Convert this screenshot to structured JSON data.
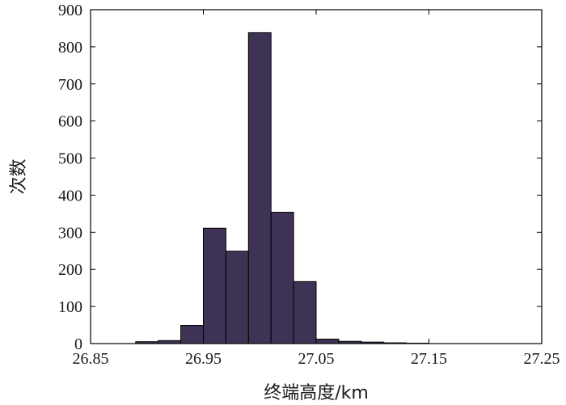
{
  "chart_data": {
    "type": "bar",
    "subtype": "histogram",
    "title": "",
    "xlabel": "终端高度/km",
    "ylabel": "次数",
    "xlim": [
      26.85,
      27.25
    ],
    "ylim": [
      0,
      900
    ],
    "x_ticks": [
      "26.85",
      "26.95",
      "27.05",
      "27.15",
      "27.25"
    ],
    "y_ticks": [
      "0",
      "100",
      "200",
      "300",
      "400",
      "500",
      "600",
      "700",
      "800",
      "900"
    ],
    "bin_width": 0.02,
    "bin_starts": [
      26.89,
      26.91,
      26.93,
      26.95,
      26.97,
      26.99,
      27.01,
      27.03,
      27.05,
      27.07,
      27.09,
      27.11,
      27.13
    ],
    "values": [
      5,
      8,
      49,
      311,
      249,
      838,
      354,
      167,
      12,
      6,
      4,
      2,
      1
    ],
    "bar_color": "#3f3355",
    "bar_edge_color": "#000000",
    "grid": false,
    "legend": false
  }
}
